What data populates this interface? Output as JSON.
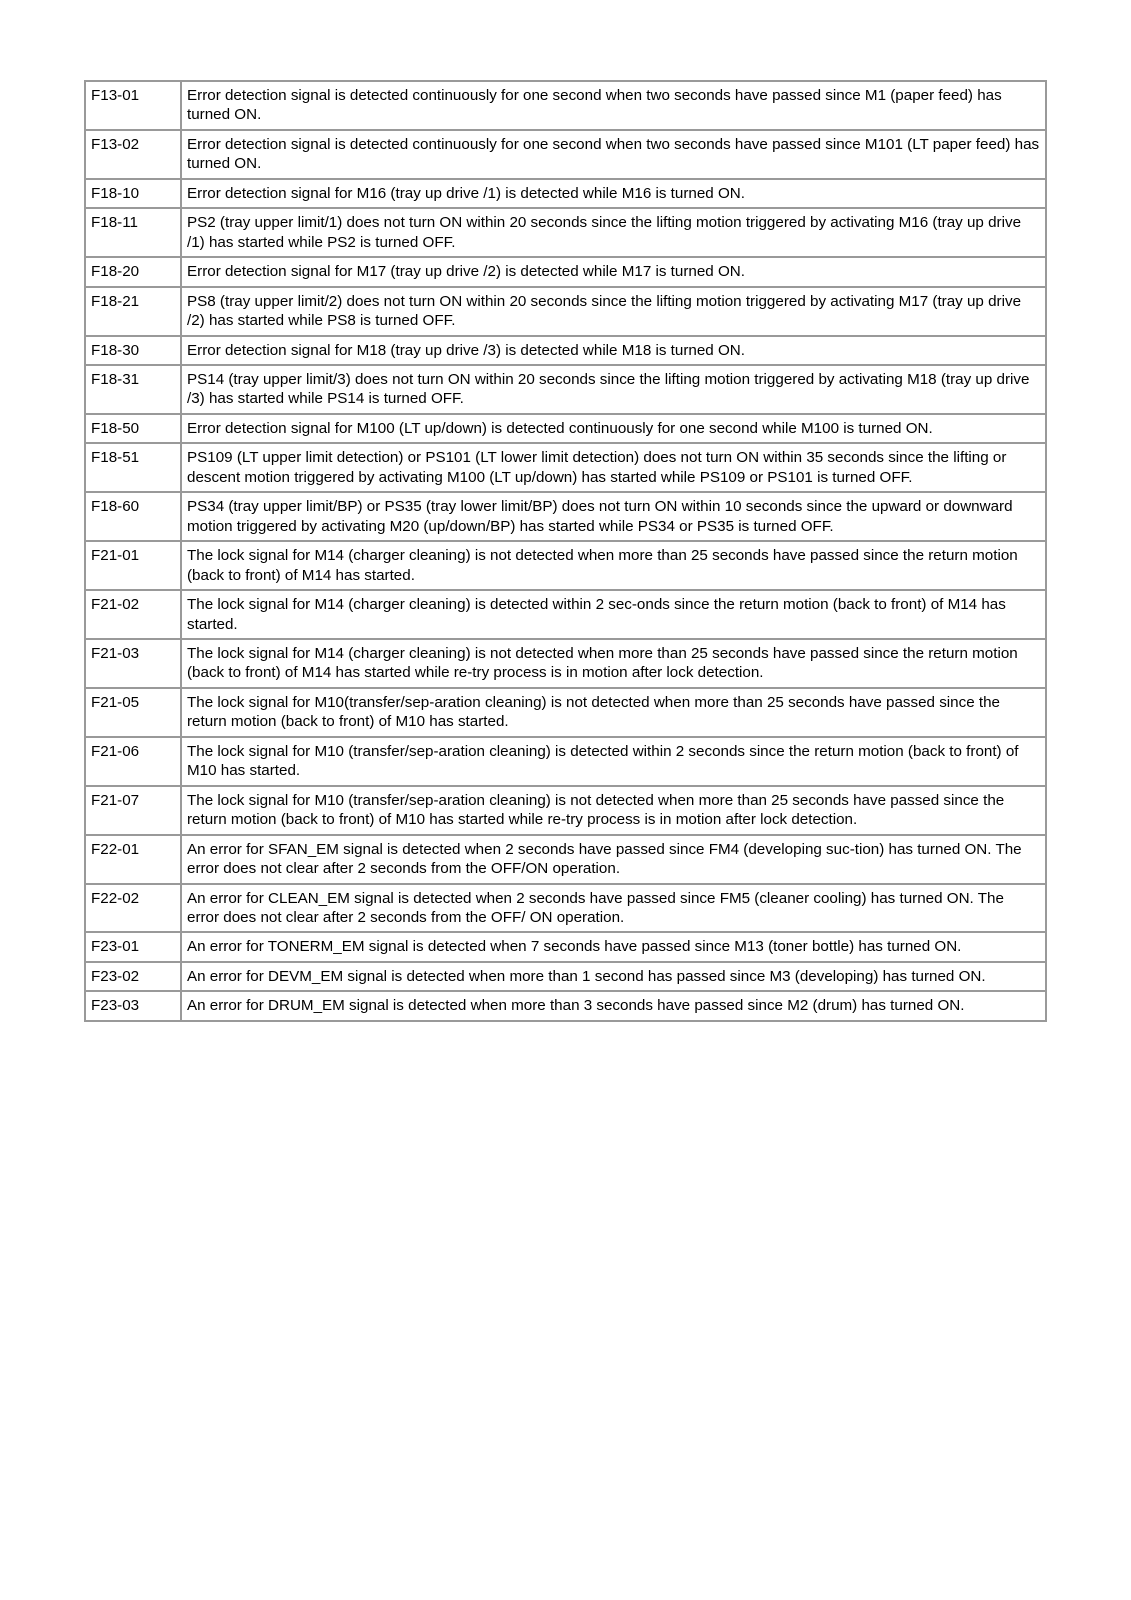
{
  "error_table": {
    "rows": [
      {
        "code": "F13-01",
        "desc": "Error detection signal is detected continuously for one second when two seconds have passed since M1 (paper feed) has turned ON."
      },
      {
        "code": "F13-02",
        "desc": "Error detection signal is detected continuously for one second when two seconds have passed since M101 (LT paper feed) has turned ON."
      },
      {
        "code": "F18-10",
        "desc": "Error detection signal for M16 (tray up drive /1) is detected while M16 is turned ON."
      },
      {
        "code": "F18-11",
        "desc": "PS2 (tray upper limit/1) does not turn ON within 20 seconds since the lifting motion triggered by activating M16 (tray up drive /1) has started while PS2 is turned OFF."
      },
      {
        "code": "F18-20",
        "desc": "Error detection signal for M17 (tray up drive /2) is detected while M17 is turned ON."
      },
      {
        "code": "F18-21",
        "desc": "PS8 (tray upper limit/2) does not turn ON within 20 seconds since the lifting motion triggered by activating M17 (tray up drive /2) has started while PS8 is turned OFF."
      },
      {
        "code": "F18-30",
        "desc": "Error detection signal for M18 (tray up drive /3) is detected while M18 is turned ON."
      },
      {
        "code": "F18-31",
        "desc": "PS14 (tray upper limit/3) does not turn ON within 20 seconds since the lifting motion triggered by activating M18 (tray up drive /3) has started while PS14 is turned OFF."
      },
      {
        "code": "F18-50",
        "desc": "Error detection signal for M100 (LT up/down) is detected continuously for one second while M100 is turned ON."
      },
      {
        "code": "F18-51",
        "desc": "PS109 (LT upper limit detection) or PS101 (LT lower limit detection) does not turn ON within 35 seconds since the lifting or descent motion triggered by activating M100 (LT up/down) has started while PS109 or PS101 is turned OFF."
      },
      {
        "code": "F18-60",
        "desc": "PS34 (tray upper limit/BP) or PS35 (tray lower limit/BP) does not turn ON within 10 seconds since the upward or downward motion triggered by activating M20 (up/down/BP) has started while PS34 or PS35 is turned OFF."
      },
      {
        "code": "F21-01",
        "desc": "The lock signal for M14 (charger cleaning) is not detected when more than 25 seconds have passed since the return motion (back to front) of M14 has started."
      },
      {
        "code": "F21-02",
        "desc": "The lock signal for M14 (charger cleaning) is detected within 2 sec-onds since the return motion (back to front) of M14 has started."
      },
      {
        "code": "F21-03",
        "desc": "The lock signal for M14 (charger cleaning) is not detected when more than 25 seconds have passed since the return motion (back to front) of M14 has started while re-try process is in motion after lock detection."
      },
      {
        "code": "F21-05",
        "desc": "The lock signal for M10(transfer/sep-aration cleaning) is not detected when more than 25 seconds have passed since the return motion (back to front) of M10 has started."
      },
      {
        "code": "F21-06",
        "desc": "The lock signal for M10 (transfer/sep-aration cleaning) is detected within 2 seconds since the return motion (back to front) of M10 has started."
      },
      {
        "code": "F21-07",
        "desc": "The lock signal for M10 (transfer/sep-aration cleaning) is not detected when more than 25 seconds have passed since the return motion (back to front) of M10 has started while re-try process is in motion after lock detection."
      },
      {
        "code": "F22-01",
        "desc": "An error for SFAN_EM signal is detected when 2 seconds have passed since FM4 (developing suc-tion) has turned ON. The error does not clear after 2 seconds from the OFF/ON operation."
      },
      {
        "code": "F22-02",
        "desc": "An error for CLEAN_EM signal is detected when 2 seconds have passed since FM5 (cleaner cooling) has turned ON. The error does not clear after 2 seconds from the OFF/ ON operation."
      },
      {
        "code": "F23-01",
        "desc": "An error for TONERM_EM signal is detected when 7 seconds have passed since M13 (toner bottle) has turned ON."
      },
      {
        "code": "F23-02",
        "desc": "An error for DEVM_EM signal is detected when more than 1 second has passed since M3 (developing) has turned ON."
      },
      {
        "code": "F23-03",
        "desc": "An error for DRUM_EM signal is detected when more than 3 seconds have passed since M2 (drum) has turned ON."
      }
    ]
  }
}
